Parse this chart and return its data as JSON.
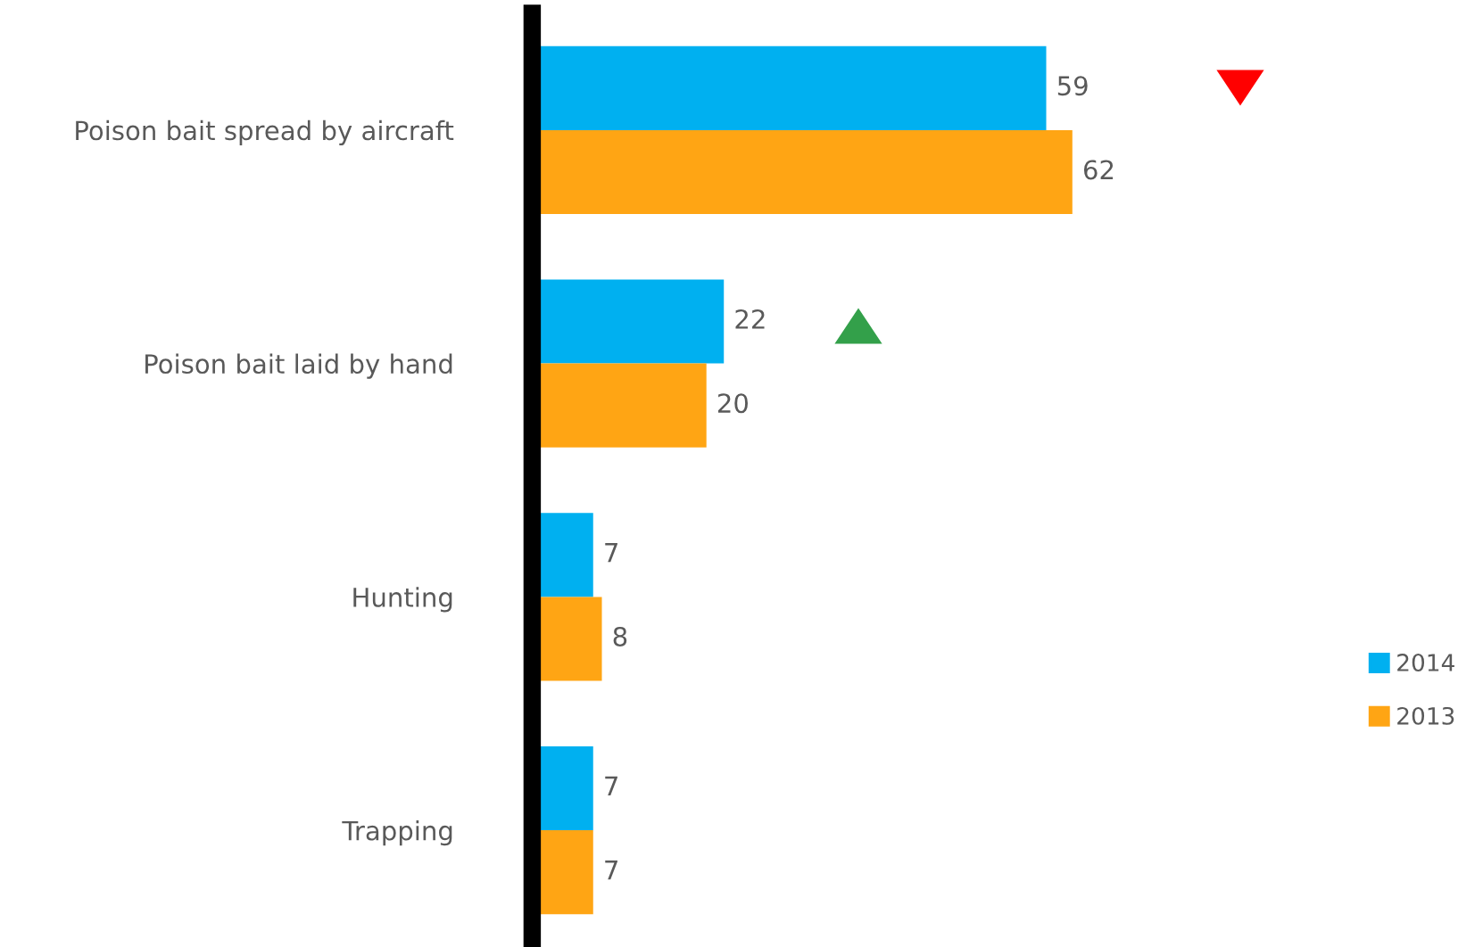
{
  "chart_data": {
    "type": "bar",
    "orientation": "horizontal",
    "categories": [
      "Poison bait spread by aircraft",
      "Poison bait laid by hand",
      "Hunting",
      "Trapping"
    ],
    "series": [
      {
        "name": "2014",
        "color": "#00b0f0",
        "values": [
          59,
          22,
          7,
          7
        ]
      },
      {
        "name": "2013",
        "color": "#ffa514",
        "values": [
          62,
          20,
          8,
          7
        ]
      }
    ],
    "data_labels": true,
    "tick_labels": "y",
    "legend": "right",
    "grid": false
  }
}
